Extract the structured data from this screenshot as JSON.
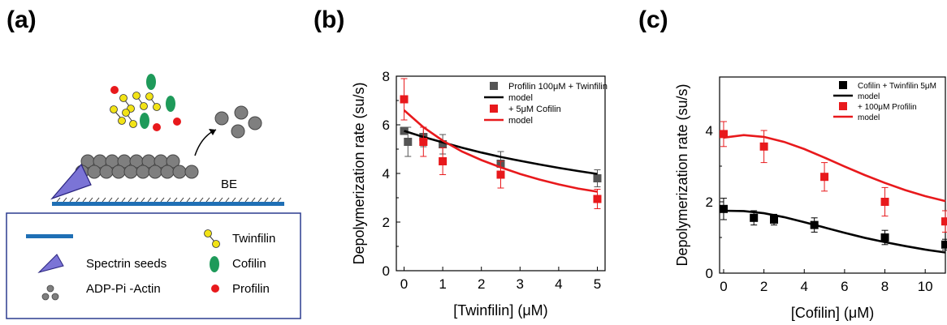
{
  "panels": {
    "a": {
      "label": "(a)"
    },
    "b": {
      "label": "(b)"
    },
    "c": {
      "label": "(c)"
    }
  },
  "schematic": {
    "arrow_label": "BE",
    "legend": [
      {
        "icon": "twinfilin-icon",
        "label": "Twinfilin"
      },
      {
        "icon": "spectrin-seed-icon",
        "label": "Spectrin seeds"
      },
      {
        "icon": "cofilin-icon",
        "label": "Cofilin"
      },
      {
        "icon": "adp-pi-actin-icon",
        "label": "ADP-Pi -Actin"
      },
      {
        "icon": "profilin-icon",
        "label": "Profilin"
      }
    ]
  },
  "colors": {
    "red": "#e8191c",
    "black": "#000000",
    "gray": "#555555",
    "twinfilin": "#f2e316",
    "cofilin": "#1e9a5a",
    "spectrin": "#7b74d6",
    "actin": "#7f7f7f",
    "surface": "#1f6fb5"
  },
  "chart_data": [
    {
      "type": "scatter",
      "xlabel": "[Twinfilin] (μM)",
      "ylabel": "Depolymerization rate (su/s)",
      "xlim": [
        -0.2,
        5.2
      ],
      "ylim": [
        0,
        8
      ],
      "xticks": [
        0,
        1,
        2,
        3,
        4,
        5
      ],
      "yticks": [
        0,
        2,
        4,
        6,
        8
      ],
      "legend_position": "top-right",
      "series": [
        {
          "name": "Profilin 100μM + Twinfilin",
          "kind": "points",
          "color": "#555555",
          "points": [
            {
              "x": 0,
              "y": 5.75,
              "err": 0.15
            },
            {
              "x": 0.1,
              "y": 5.3,
              "err": 0.6
            },
            {
              "x": 0.5,
              "y": 5.5,
              "err": 0.4
            },
            {
              "x": 1,
              "y": 5.2,
              "err": 0.4
            },
            {
              "x": 2.5,
              "y": 4.4,
              "err": 0.5
            },
            {
              "x": 5,
              "y": 3.8,
              "err": 0.35
            }
          ]
        },
        {
          "name": "model",
          "kind": "line",
          "color": "#000000",
          "x": [
            0,
            0.5,
            1,
            1.5,
            2,
            2.5,
            3,
            3.5,
            4,
            4.5,
            5
          ],
          "y": [
            5.75,
            5.5,
            5.28,
            5.06,
            4.86,
            4.68,
            4.52,
            4.37,
            4.23,
            4.1,
            3.98
          ]
        },
        {
          "name": "+ 5μM Cofilin",
          "kind": "points",
          "color": "#e8191c",
          "points": [
            {
              "x": 0,
              "y": 7.05,
              "err": 0.85
            },
            {
              "x": 0.5,
              "y": 5.3,
              "err": 0.6
            },
            {
              "x": 1,
              "y": 4.5,
              "err": 0.55
            },
            {
              "x": 2.5,
              "y": 3.95,
              "err": 0.55
            },
            {
              "x": 5,
              "y": 2.95,
              "err": 0.4
            }
          ]
        },
        {
          "name": "model",
          "kind": "line",
          "color": "#e8191c",
          "x": [
            0,
            0.5,
            1,
            1.5,
            2,
            2.5,
            3,
            3.5,
            4,
            4.5,
            5
          ],
          "y": [
            6.6,
            5.9,
            5.35,
            4.9,
            4.55,
            4.25,
            3.98,
            3.75,
            3.55,
            3.38,
            3.25
          ]
        }
      ]
    },
    {
      "type": "scatter",
      "xlabel": "[Cofilin] (μM)",
      "ylabel": "Depolymerization rate (su/s)",
      "xlim": [
        -0.2,
        11
      ],
      "ylim": [
        0,
        5.5
      ],
      "xticks": [
        0,
        2,
        4,
        6,
        8,
        10
      ],
      "yticks": [
        0,
        2,
        4
      ],
      "legend_position": "top-right",
      "series": [
        {
          "name": "Cofilin + Twinfilin  5μM",
          "kind": "points",
          "color": "#000000",
          "points": [
            {
              "x": 0,
              "y": 1.8,
              "err": 0.3
            },
            {
              "x": 1.5,
              "y": 1.55,
              "err": 0.2
            },
            {
              "x": 2.5,
              "y": 1.5,
              "err": 0.15
            },
            {
              "x": 4.5,
              "y": 1.35,
              "err": 0.2
            },
            {
              "x": 8,
              "y": 1.0,
              "err": 0.2
            },
            {
              "x": 11,
              "y": 0.8,
              "err": 0.15
            }
          ]
        },
        {
          "name": "model",
          "kind": "line",
          "color": "#000000",
          "x": [
            0,
            1,
            2,
            3,
            4,
            5,
            6,
            7,
            8,
            9,
            10,
            11
          ],
          "y": [
            1.75,
            1.74,
            1.68,
            1.57,
            1.43,
            1.28,
            1.13,
            0.99,
            0.87,
            0.76,
            0.66,
            0.58
          ]
        },
        {
          "name": "+ 100μM Profilin",
          "kind": "points",
          "color": "#e8191c",
          "points": [
            {
              "x": 0,
              "y": 3.9,
              "err": 0.35
            },
            {
              "x": 2,
              "y": 3.55,
              "err": 0.45
            },
            {
              "x": 5,
              "y": 2.7,
              "err": 0.4
            },
            {
              "x": 8,
              "y": 2.0,
              "err": 0.4
            },
            {
              "x": 11,
              "y": 1.45,
              "err": 0.3
            }
          ]
        },
        {
          "name": "model",
          "kind": "line",
          "color": "#e8191c",
          "x": [
            0,
            1,
            2,
            3,
            4,
            5,
            6,
            7,
            8,
            9,
            10,
            11
          ],
          "y": [
            3.8,
            3.87,
            3.82,
            3.68,
            3.48,
            3.24,
            2.99,
            2.75,
            2.53,
            2.33,
            2.16,
            2.02
          ]
        }
      ]
    }
  ]
}
